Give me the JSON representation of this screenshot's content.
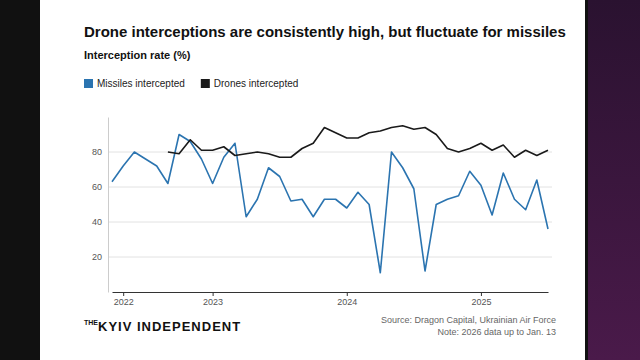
{
  "chart_data": {
    "type": "line",
    "title": "Drone interceptions are consistently high, but fluctuate for missiles",
    "y_label": "Interception rate (%)",
    "categories": [
      null,
      "2022",
      null,
      null,
      null,
      null,
      null,
      null,
      null,
      "2023",
      null,
      null,
      null,
      null,
      null,
      null,
      null,
      null,
      null,
      null,
      null,
      "2024",
      null,
      null,
      null,
      null,
      null,
      null,
      null,
      null,
      null,
      null,
      null,
      "2025",
      null,
      null,
      null,
      null,
      null,
      null
    ],
    "series": [
      {
        "name": "Missiles intercepted",
        "color": "#2b74b0",
        "values": [
          63,
          72,
          80,
          76,
          72,
          62,
          90,
          86,
          76,
          62,
          77,
          85,
          43,
          53,
          71,
          66,
          52,
          53,
          43,
          53,
          53,
          48,
          57,
          50,
          11,
          80,
          71,
          59,
          12,
          50,
          53,
          55,
          69,
          61,
          44,
          68,
          53,
          47,
          64,
          36
        ]
      },
      {
        "name": "Drones intercepted",
        "color": "#1a1a1a",
        "values": [
          null,
          null,
          null,
          null,
          null,
          80,
          79,
          87,
          81,
          81,
          83,
          78,
          79,
          80,
          79,
          77,
          77,
          82,
          85,
          94,
          91,
          88,
          88,
          91,
          92,
          94,
          95,
          93,
          94,
          90,
          82,
          80,
          82,
          85,
          81,
          84,
          77,
          81,
          78,
          81
        ]
      }
    ],
    "ylim": [
      0,
      100
    ],
    "yticks": [
      20,
      40,
      60,
      80
    ],
    "grid": true,
    "legend": "top-left",
    "brand_prefix": "THE",
    "brand": "KYIV INDEPENDENT",
    "source": "Source: Dragon Capital, Ukrainian Air Force",
    "note": "Note: 2026 data up to Jan. 13"
  }
}
